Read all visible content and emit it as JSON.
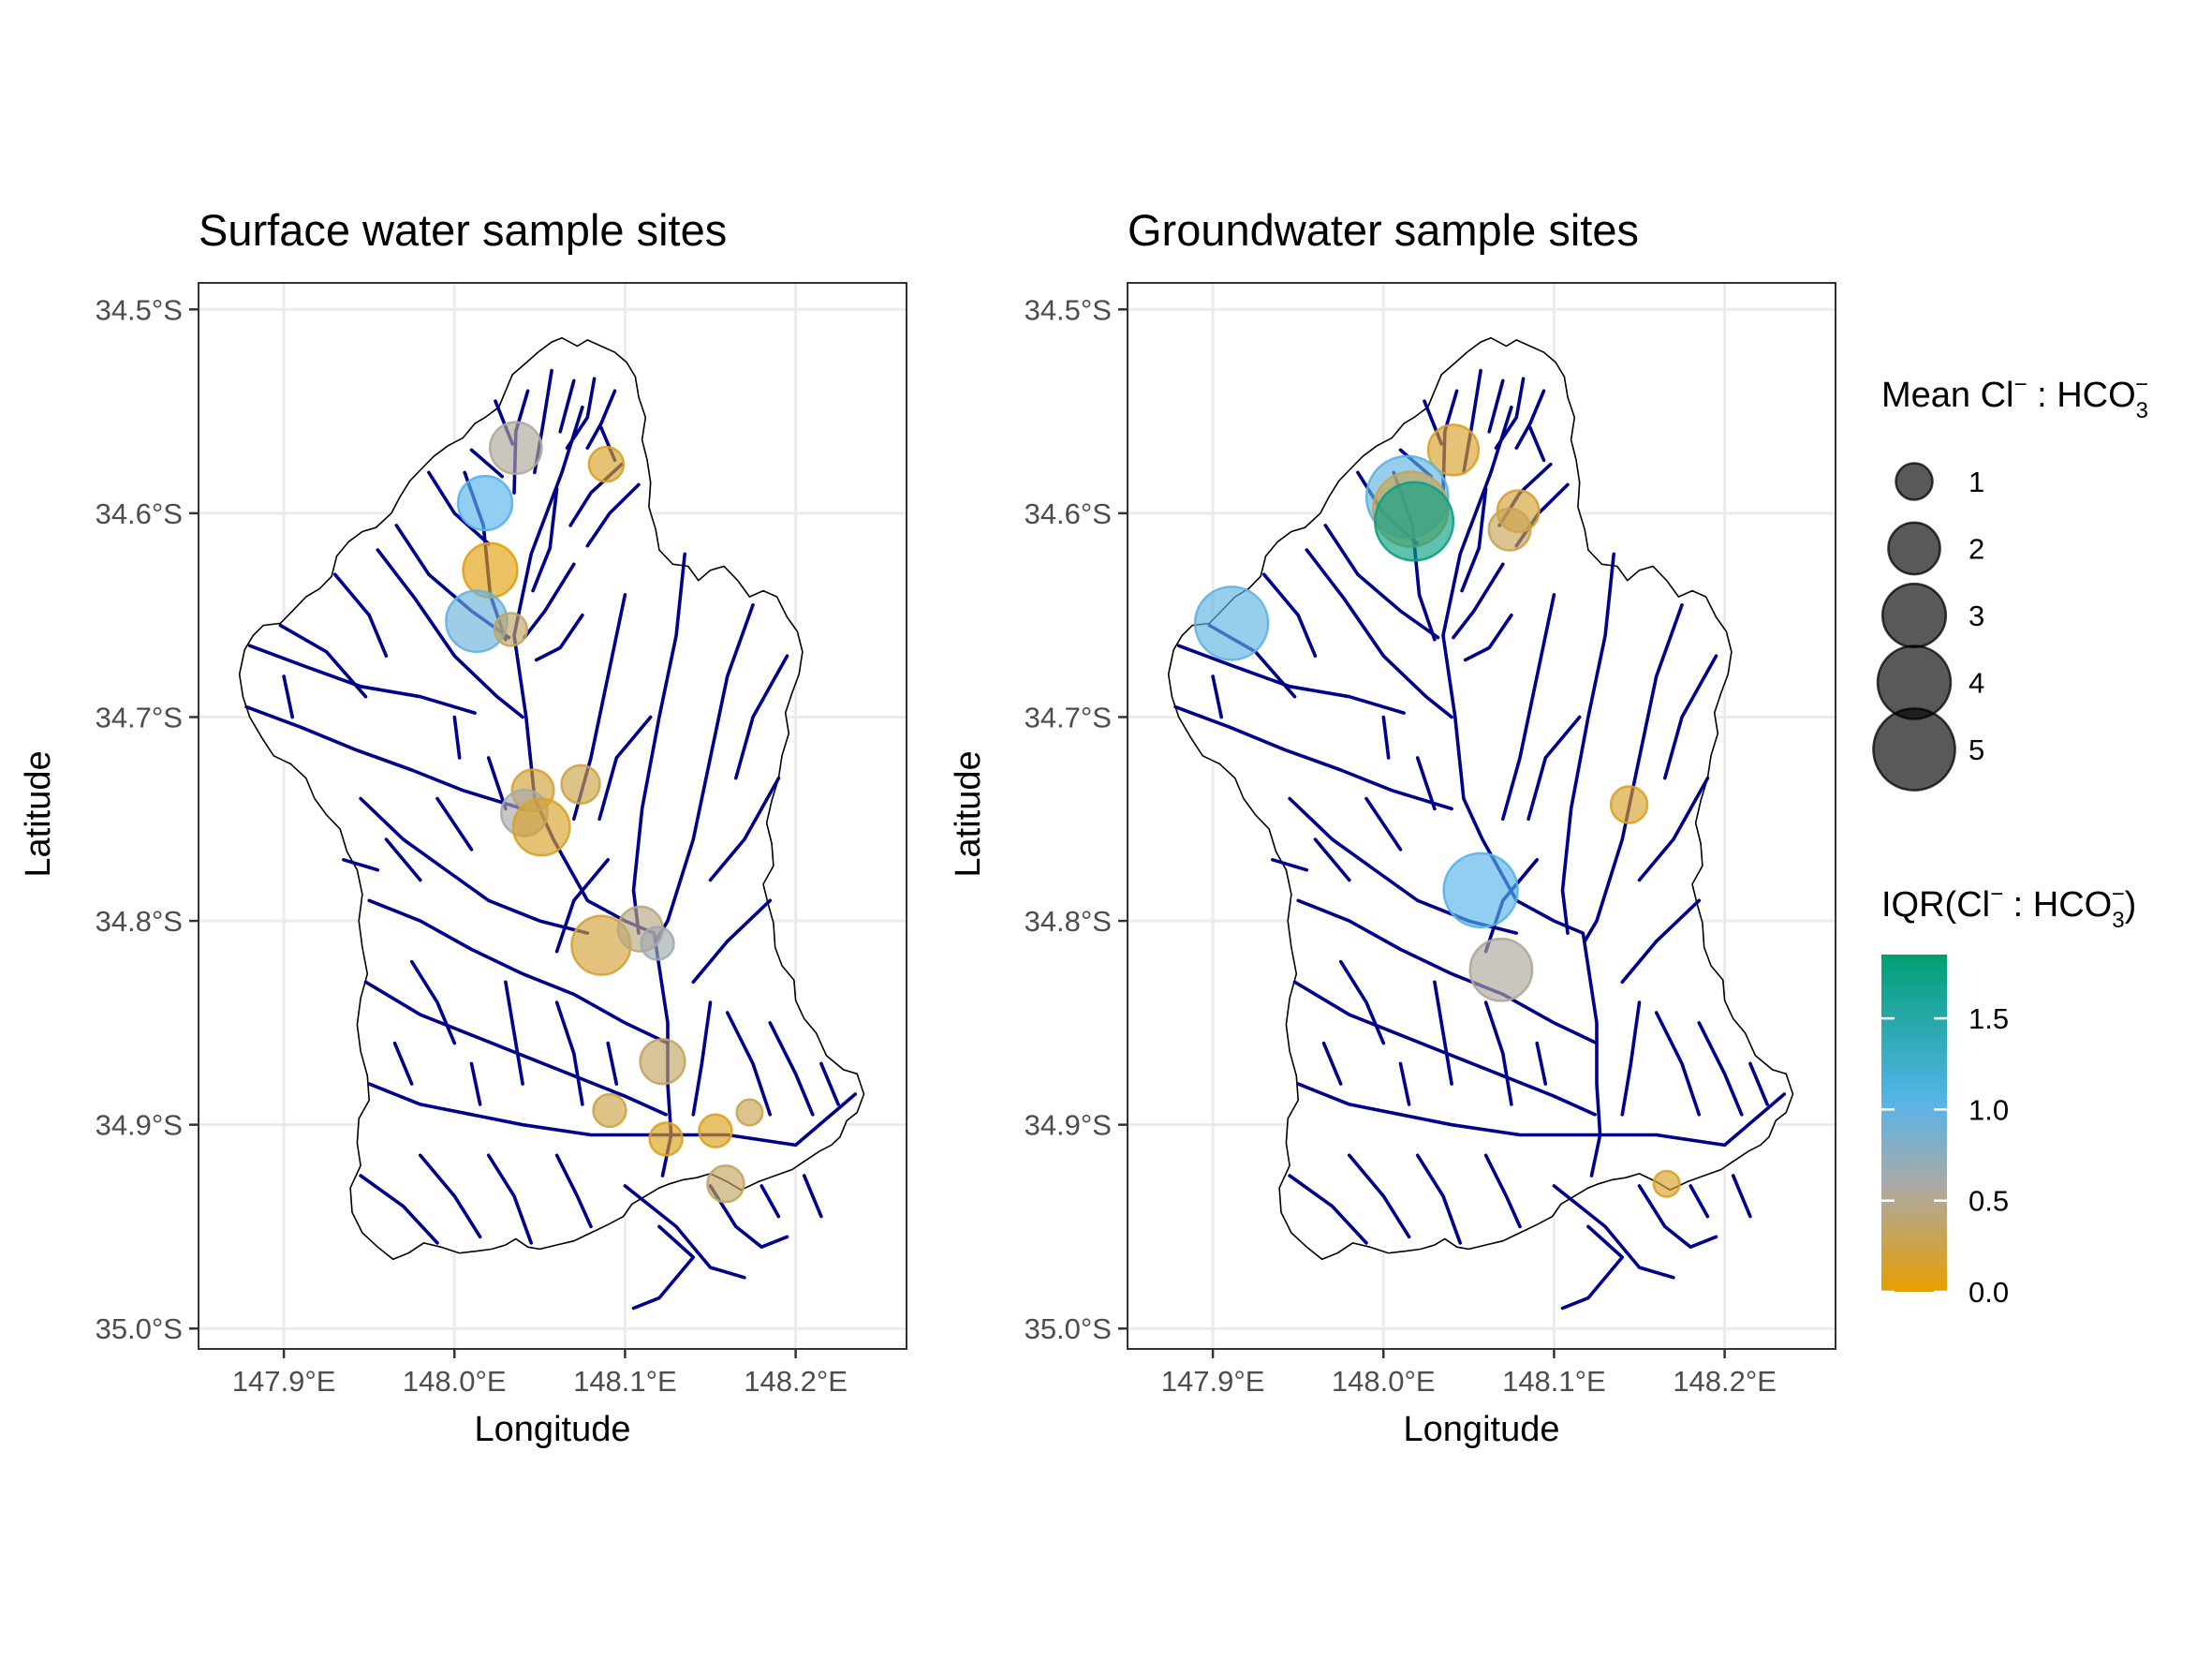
{
  "figure": {
    "legend": {
      "size_title": {
        "prefix": "Mean Cl",
        "sup1": "−",
        "mid": " : HCO",
        "sub": "3",
        "sup2": "−",
        "suffix": ""
      },
      "size_entries": [
        {
          "value": 1,
          "label": "1"
        },
        {
          "value": 2,
          "label": "2"
        },
        {
          "value": 3,
          "label": "3"
        },
        {
          "value": 4,
          "label": "4"
        },
        {
          "value": 5,
          "label": "5"
        }
      ],
      "color_title": {
        "prefix": "IQR(Cl",
        "sup1": "−",
        "mid": " : HCO",
        "sub": "3",
        "sup2": "−",
        "suffix": ")"
      },
      "color_ticks": [
        {
          "value": 0.0,
          "label": "0.0"
        },
        {
          "value": 0.5,
          "label": "0.5"
        },
        {
          "value": 1.0,
          "label": "1.0"
        },
        {
          "value": 1.5,
          "label": "1.5"
        }
      ],
      "color_range": [
        0,
        1.85
      ],
      "color_stops": [
        {
          "value": 0.0,
          "color": "#E69F00"
        },
        {
          "value": 0.6,
          "color": "#A9A9A9"
        },
        {
          "value": 1.05,
          "color": "#56B4E9"
        },
        {
          "value": 1.85,
          "color": "#009E73"
        }
      ]
    },
    "line_color": "#00008B"
  },
  "chart_data": [
    {
      "type": "scatter",
      "title": "Surface water sample sites",
      "xlabel": "Longitude",
      "ylabel": "Latitude",
      "xlim": [
        147.85,
        148.265
      ],
      "ylim": [
        -35.01,
        -34.487
      ],
      "x_ticks": [
        {
          "value": 147.9,
          "label": "147.9°E"
        },
        {
          "value": 148.0,
          "label": "148.0°E"
        },
        {
          "value": 148.1,
          "label": "148.1°E"
        },
        {
          "value": 148.2,
          "label": "148.2°E"
        }
      ],
      "y_ticks": [
        {
          "value": -34.5,
          "label": "34.5°S"
        },
        {
          "value": -34.6,
          "label": "34.6°S"
        },
        {
          "value": -34.7,
          "label": "34.7°S"
        },
        {
          "value": -34.8,
          "label": "34.8°S"
        },
        {
          "value": -34.9,
          "label": "34.9°S"
        },
        {
          "value": -35.0,
          "label": "35.0°S"
        }
      ],
      "grid": true,
      "points": [
        {
          "lon": 148.036,
          "lat": -34.568,
          "mean": 2.0,
          "iqr": 0.55
        },
        {
          "lon": 148.089,
          "lat": -34.576,
          "mean": 0.9,
          "iqr": 0.15
        },
        {
          "lon": 148.018,
          "lat": -34.595,
          "mean": 2.2,
          "iqr": 1.05
        },
        {
          "lon": 148.021,
          "lat": -34.628,
          "mean": 2.2,
          "iqr": 0.05
        },
        {
          "lon": 148.013,
          "lat": -34.653,
          "mean": 2.8,
          "iqr": 0.95
        },
        {
          "lon": 148.033,
          "lat": -34.657,
          "mean": 0.8,
          "iqr": 0.35
        },
        {
          "lon": 148.046,
          "lat": -34.736,
          "mean": 1.3,
          "iqr": 0.2
        },
        {
          "lon": 148.074,
          "lat": -34.733,
          "mean": 1.1,
          "iqr": 0.25
        },
        {
          "lon": 148.041,
          "lat": -34.747,
          "mean": 1.6,
          "iqr": 0.6
        },
        {
          "lon": 148.051,
          "lat": -34.754,
          "mean": 2.4,
          "iqr": 0.15
        },
        {
          "lon": 148.086,
          "lat": -34.812,
          "mean": 2.6,
          "iqr": 0.2
        },
        {
          "lon": 148.109,
          "lat": -34.804,
          "mean": 1.5,
          "iqr": 0.45
        },
        {
          "lon": 148.119,
          "lat": -34.811,
          "mean": 0.8,
          "iqr": 0.65
        },
        {
          "lon": 148.122,
          "lat": -34.869,
          "mean": 1.5,
          "iqr": 0.35
        },
        {
          "lon": 148.091,
          "lat": -34.893,
          "mean": 0.8,
          "iqr": 0.25
        },
        {
          "lon": 148.124,
          "lat": -34.907,
          "mean": 0.8,
          "iqr": 0.1
        },
        {
          "lon": 148.153,
          "lat": -34.903,
          "mean": 0.8,
          "iqr": 0.1
        },
        {
          "lon": 148.173,
          "lat": -34.894,
          "mean": 0.5,
          "iqr": 0.3
        },
        {
          "lon": 148.159,
          "lat": -34.929,
          "mean": 1.0,
          "iqr": 0.35
        }
      ]
    },
    {
      "type": "scatter",
      "title": "Groundwater sample sites",
      "xlabel": "Longitude",
      "ylabel": "Latitude",
      "xlim": [
        147.85,
        148.265
      ],
      "ylim": [
        -35.01,
        -34.487
      ],
      "x_ticks": [
        {
          "value": 147.9,
          "label": "147.9°E"
        },
        {
          "value": 148.0,
          "label": "148.0°E"
        },
        {
          "value": 148.1,
          "label": "148.1°E"
        },
        {
          "value": 148.2,
          "label": "148.2°E"
        }
      ],
      "y_ticks": [
        {
          "value": -34.5,
          "label": "34.5°S"
        },
        {
          "value": -34.6,
          "label": "34.6°S"
        },
        {
          "value": -34.7,
          "label": "34.7°S"
        },
        {
          "value": -34.8,
          "label": "34.8°S"
        },
        {
          "value": -34.9,
          "label": "34.9°S"
        },
        {
          "value": -35.0,
          "label": "35.0°S"
        }
      ],
      "grid": true,
      "points": [
        {
          "lon": 148.041,
          "lat": -34.569,
          "mean": 1.9,
          "iqr": 0.15
        },
        {
          "lon": 148.014,
          "lat": -34.592,
          "mean": 5.0,
          "iqr": 1.0
        },
        {
          "lon": 148.016,
          "lat": -34.598,
          "mean": 4.2,
          "iqr": 0.3
        },
        {
          "lon": 148.018,
          "lat": -34.604,
          "mean": 4.6,
          "iqr": 1.75
        },
        {
          "lon": 148.079,
          "lat": -34.599,
          "mean": 1.3,
          "iqr": 0.2
        },
        {
          "lon": 148.074,
          "lat": -34.608,
          "mean": 1.3,
          "iqr": 0.3
        },
        {
          "lon": 147.911,
          "lat": -34.654,
          "mean": 4.0,
          "iqr": 1.0
        },
        {
          "lon": 148.144,
          "lat": -34.743,
          "mean": 1.0,
          "iqr": 0.15
        },
        {
          "lon": 148.057,
          "lat": -34.785,
          "mean": 4.1,
          "iqr": 1.05
        },
        {
          "lon": 148.069,
          "lat": -34.824,
          "mean": 2.9,
          "iqr": 0.55
        },
        {
          "lon": 148.166,
          "lat": -34.929,
          "mean": 0.5,
          "iqr": 0.15
        }
      ]
    }
  ]
}
